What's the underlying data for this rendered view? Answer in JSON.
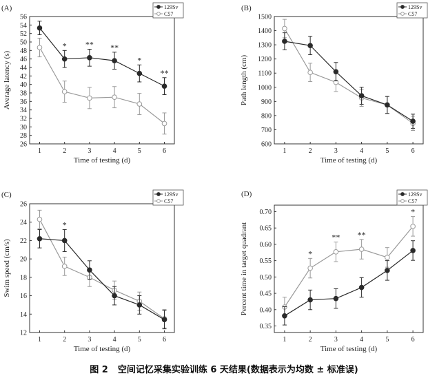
{
  "figure_caption": {
    "label": "图 2",
    "text": "空间记忆采集实验训练 6 天结果(数据表示为均数 ± 标准误)"
  },
  "colors": {
    "strain_129": "#2a2a2a",
    "strain_c57": "#9a9a9a"
  },
  "chart_data": [
    {
      "panel_label": "(A)",
      "type": "line",
      "title": "",
      "xlabel": "Time of testing (d)",
      "ylabel": "Average latency (s)",
      "x": [
        1,
        2,
        3,
        4,
        5,
        6
      ],
      "xlim": [
        0.6,
        6.4
      ],
      "ylim": [
        26,
        56
      ],
      "yticks": [
        26,
        28,
        30,
        32,
        34,
        36,
        38,
        40,
        42,
        44,
        46,
        48,
        50,
        52,
        54,
        56
      ],
      "ytick_labels": [
        "26",
        "28",
        "30",
        "32",
        "34",
        "36",
        "38",
        "40",
        "42",
        "44",
        "46",
        "48",
        "50",
        "52",
        "54",
        "56"
      ],
      "legend_position": "top-right",
      "series": [
        {
          "name": "129Sv",
          "marker": "filled",
          "values": [
            53.3,
            46.0,
            46.3,
            45.6,
            42.6,
            39.6
          ],
          "errors": [
            1.6,
            2.0,
            2.0,
            2.0,
            2.0,
            2.0
          ]
        },
        {
          "name": "C57",
          "marker": "open",
          "values": [
            48.7,
            38.3,
            36.8,
            37.0,
            35.4,
            30.8
          ],
          "errors": [
            2.2,
            2.5,
            2.5,
            2.5,
            2.5,
            2.5
          ]
        }
      ],
      "significance": [
        {
          "x": 2,
          "text": "*"
        },
        {
          "x": 3,
          "text": "**"
        },
        {
          "x": 4,
          "text": "**"
        },
        {
          "x": 5,
          "text": "*"
        },
        {
          "x": 6,
          "text": "**"
        }
      ]
    },
    {
      "panel_label": "(B)",
      "type": "line",
      "title": "",
      "xlabel": "Time of testing (d)",
      "ylabel": "Path length (cm)",
      "x": [
        1,
        2,
        3,
        4,
        5,
        6
      ],
      "xlim": [
        0.6,
        6.4
      ],
      "ylim": [
        600,
        1500
      ],
      "yticks": [
        600,
        700,
        800,
        900,
        1000,
        1100,
        1200,
        1300,
        1400,
        1500
      ],
      "ytick_labels": [
        "600",
        "700",
        "800",
        "900",
        "1000",
        "1100",
        "1200",
        "1300",
        "1400",
        "1500"
      ],
      "legend_position": "top-right",
      "series": [
        {
          "name": "129Sv",
          "marker": "filled",
          "values": [
            1325,
            1295,
            1110,
            940,
            875,
            760
          ],
          "errors": [
            60,
            65,
            65,
            60,
            60,
            50
          ]
        },
        {
          "name": "C57",
          "marker": "open",
          "values": [
            1415,
            1105,
            1035,
            925,
            875,
            745
          ],
          "errors": [
            65,
            65,
            65,
            60,
            60,
            50
          ]
        }
      ],
      "significance": []
    },
    {
      "panel_label": "(C)",
      "type": "line",
      "title": "",
      "xlabel": "Time of testing (d)",
      "ylabel": "Swim speed (cm/s)",
      "x": [
        1,
        2,
        3,
        4,
        5,
        6
      ],
      "xlim": [
        0.6,
        6.4
      ],
      "ylim": [
        12,
        26
      ],
      "yticks": [
        12,
        14,
        16,
        18,
        20,
        22,
        24,
        26
      ],
      "ytick_labels": [
        "12",
        "14",
        "16",
        "18",
        "20",
        "22",
        "24",
        "26"
      ],
      "legend_position": "top-right",
      "series": [
        {
          "name": "129Sv",
          "marker": "filled",
          "values": [
            22.2,
            22.0,
            18.8,
            16.0,
            15.0,
            13.4
          ],
          "errors": [
            1.0,
            1.2,
            1.0,
            1.0,
            1.0,
            1.0
          ]
        },
        {
          "name": "C57",
          "marker": "open",
          "values": [
            24.3,
            19.2,
            18.0,
            16.6,
            15.4,
            13.5
          ],
          "errors": [
            1.0,
            1.0,
            1.0,
            1.0,
            1.0,
            1.0
          ]
        }
      ],
      "significance": [
        {
          "x": 2,
          "text": "*"
        }
      ]
    },
    {
      "panel_label": "(D)",
      "type": "line",
      "title": "",
      "xlabel": "Time of testing (d)",
      "ylabel": "Percent time in target quadrant",
      "x": [
        1,
        2,
        3,
        4,
        5,
        6
      ],
      "xlim": [
        0.6,
        6.4
      ],
      "ylim": [
        0.33,
        0.72
      ],
      "yticks": [
        0.35,
        0.4,
        0.45,
        0.5,
        0.55,
        0.6,
        0.65,
        0.7
      ],
      "ytick_labels": [
        "0.35",
        "0.40",
        "0.45",
        "0.50",
        "0.55",
        "0.60",
        "0.65",
        "0.70"
      ],
      "legend_position": "top-right",
      "series": [
        {
          "name": "129Sv",
          "marker": "filled",
          "values": [
            0.381,
            0.43,
            0.434,
            0.468,
            0.52,
            0.581
          ],
          "errors": [
            0.028,
            0.03,
            0.03,
            0.03,
            0.03,
            0.03
          ]
        },
        {
          "name": "C57",
          "marker": "open",
          "values": [
            0.408,
            0.527,
            0.577,
            0.585,
            0.56,
            0.655
          ],
          "errors": [
            0.03,
            0.03,
            0.03,
            0.03,
            0.03,
            0.03
          ]
        }
      ],
      "significance": [
        {
          "x": 2,
          "text": "*"
        },
        {
          "x": 3,
          "text": "**"
        },
        {
          "x": 4,
          "text": "**"
        },
        {
          "x": 6,
          "text": "*"
        }
      ]
    }
  ]
}
